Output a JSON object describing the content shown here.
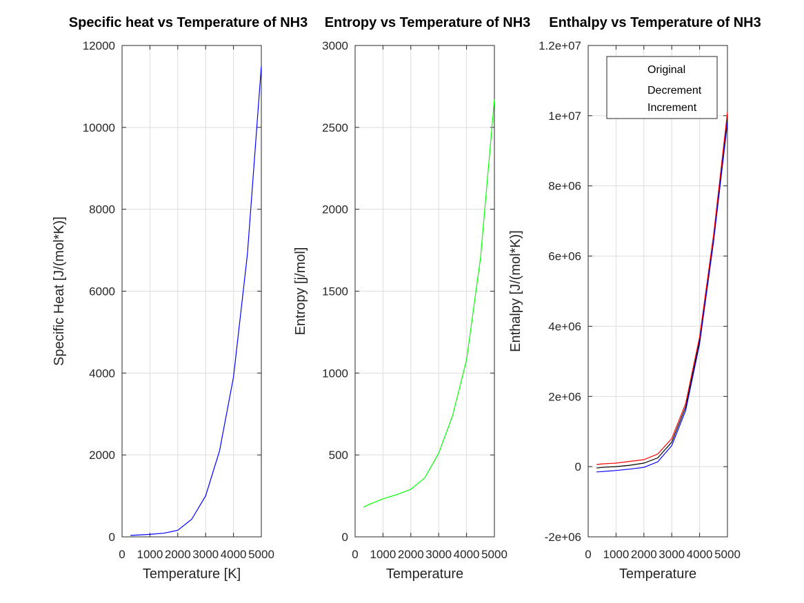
{
  "chart_data": [
    {
      "type": "line",
      "title": "Specific heat vs Temperature of NH3",
      "xlabel": "Temperature [K]",
      "ylabel": "Specific Heat [J/(mol*K)]",
      "xlim": [
        0,
        5000
      ],
      "ylim": [
        0,
        12000
      ],
      "xticks": [
        0,
        1000,
        2000,
        3000,
        4000,
        5000
      ],
      "xtick_labels": [
        "0",
        "1000",
        "2000",
        "3000",
        "4000",
        "5000"
      ],
      "yticks": [
        0,
        2000,
        4000,
        6000,
        8000,
        10000,
        12000
      ],
      "ytick_labels": [
        "0",
        "2000",
        "4000",
        "6000",
        "8000",
        "10000",
        "12000"
      ],
      "grid": true,
      "series": [
        {
          "color": "#0000ff",
          "x": [
            300,
            500,
            1000,
            1500,
            2000,
            2500,
            3000,
            3500,
            4000,
            4500,
            5000
          ],
          "y": [
            35,
            42,
            60,
            90,
            160,
            430,
            1000,
            2100,
            3900,
            6900,
            11500
          ]
        }
      ]
    },
    {
      "type": "line",
      "title": "Entropy vs Temperature of NH3",
      "xlabel": "Temperature",
      "ylabel": "Entropy [j/mol]",
      "xlim": [
        0,
        5000
      ],
      "ylim": [
        0,
        3000
      ],
      "xticks": [
        0,
        1000,
        2000,
        3000,
        4000,
        5000
      ],
      "xtick_labels": [
        "0",
        "1000",
        "2000",
        "3000",
        "4000",
        "5000"
      ],
      "yticks": [
        0,
        500,
        1000,
        1500,
        2000,
        2500,
        3000
      ],
      "ytick_labels": [
        "0",
        "500",
        "1000",
        "1500",
        "2000",
        "2500",
        "3000"
      ],
      "grid": true,
      "series": [
        {
          "color": "#00ff00",
          "x": [
            300,
            500,
            1000,
            1500,
            2000,
            2500,
            3000,
            3500,
            4000,
            4500,
            5000
          ],
          "y": [
            180,
            198,
            232,
            258,
            290,
            360,
            510,
            740,
            1080,
            1700,
            2670
          ]
        }
      ]
    },
    {
      "type": "line",
      "title": "Enthalpy vs Temperature of NH3",
      "xlabel": "Temperature",
      "ylabel": "Enthalpy [J/(mol*K)]",
      "xlim": [
        0,
        5000
      ],
      "ylim": [
        -2000000,
        12000000
      ],
      "xticks": [
        0,
        1000,
        2000,
        3000,
        4000,
        5000
      ],
      "xtick_labels": [
        "0",
        "1000",
        "2000",
        "3000",
        "4000",
        "5000"
      ],
      "yticks": [
        -2000000,
        0,
        2000000,
        4000000,
        6000000,
        8000000,
        10000000,
        12000000
      ],
      "ytick_labels": [
        "-2e+06",
        "0",
        "2e+06",
        "4e+06",
        "6e+06",
        "8e+06",
        "1e+07",
        "1.2e+07"
      ],
      "grid": true,
      "legend": {
        "position": "top-right",
        "entries": [
          "Original",
          "Decrement",
          "Increment"
        ]
      },
      "series": [
        {
          "name": "Original",
          "color": "#000000",
          "x": [
            300,
            500,
            1000,
            1500,
            2000,
            2500,
            3000,
            3500,
            4000,
            4500,
            5000
          ],
          "y": [
            -40000,
            -20000,
            0,
            40000,
            100000,
            250000,
            700000,
            1700000,
            3600000,
            6500000,
            10000000
          ]
        },
        {
          "name": "Decrement",
          "color": "#0000ff",
          "x": [
            300,
            500,
            1000,
            1500,
            2000,
            2500,
            3000,
            3500,
            4000,
            4500,
            5000
          ],
          "y": [
            -150000,
            -140000,
            -110000,
            -70000,
            -20000,
            140000,
            600000,
            1600000,
            3500000,
            6400000,
            9800000
          ]
        },
        {
          "name": "Increment",
          "color": "#ff0000",
          "x": [
            300,
            500,
            1000,
            1500,
            2000,
            2500,
            3000,
            3500,
            4000,
            4500,
            5000
          ],
          "y": [
            60000,
            80000,
            100000,
            150000,
            200000,
            360000,
            800000,
            1800000,
            3700000,
            6600000,
            10100000
          ]
        }
      ]
    }
  ]
}
